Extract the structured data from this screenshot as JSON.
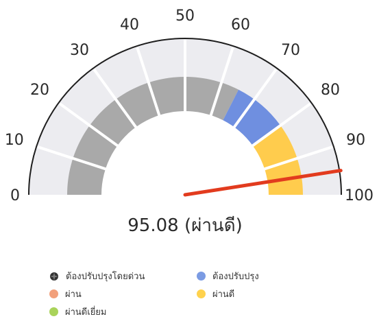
{
  "chart_data": {
    "type": "gauge",
    "min": 0,
    "max": 100,
    "ticks": [
      "0",
      "10",
      "20",
      "30",
      "40",
      "50",
      "60",
      "70",
      "80",
      "90",
      "100"
    ],
    "tick_values": [
      0,
      10,
      20,
      30,
      40,
      50,
      60,
      70,
      80,
      90,
      100
    ],
    "value": 95.08,
    "value_label": "95.08 (ผ่านดี)",
    "bands": [
      {
        "from": 0,
        "to": 65,
        "color": "#a9a9a9"
      },
      {
        "from": 65,
        "to": 80,
        "color": "#6f8fe0"
      },
      {
        "from": 80,
        "to": 100,
        "color": "#ffcc4d"
      }
    ],
    "track_color": "#ececf0",
    "needle_color": "#e23b1e",
    "legend": [
      {
        "label": "ต้องปรับปรุงโดยด่วน",
        "color": "#333333",
        "icon": "sun-icon"
      },
      {
        "label": "ต้องปรับปรุง",
        "color": "#7b9be3"
      },
      {
        "label": "ผ่าน",
        "color": "#f2a07b"
      },
      {
        "label": "ผ่านดี",
        "color": "#ffd24d"
      },
      {
        "label": "ผ่านดีเยี่ยม",
        "color": "#a9d35a"
      }
    ]
  }
}
